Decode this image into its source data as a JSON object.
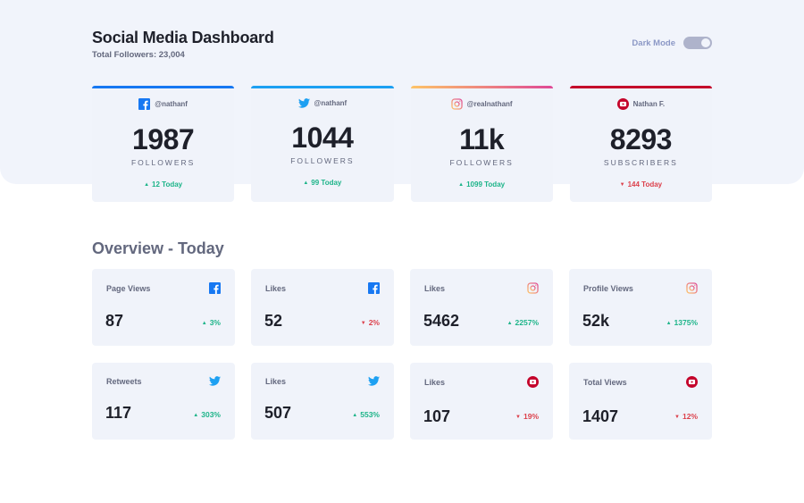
{
  "header": {
    "title": "Social Media Dashboard",
    "total_followers": "Total Followers: 23,004",
    "dark_mode_label": "Dark Mode"
  },
  "colors": {
    "facebook": "#1778f2",
    "twitter": "#1da0f2",
    "instagram_start": "#fdc468",
    "instagram_end": "#df4996",
    "youtube": "#c4032a",
    "up": "#1db489",
    "down": "#dc414c"
  },
  "follower_cards": [
    {
      "network": "facebook",
      "icon": "facebook-icon",
      "handle": "@nathanf",
      "count": "1987",
      "unit": "FOLLOWERS",
      "change": "12 Today",
      "direction": "up"
    },
    {
      "network": "twitter",
      "icon": "twitter-icon",
      "handle": "@nathanf",
      "count": "1044",
      "unit": "FOLLOWERS",
      "change": "99 Today",
      "direction": "up"
    },
    {
      "network": "instagram",
      "icon": "instagram-icon",
      "handle": "@realnathanf",
      "count": "11k",
      "unit": "FOLLOWERS",
      "change": "1099 Today",
      "direction": "up"
    },
    {
      "network": "youtube",
      "icon": "youtube-icon",
      "handle": "Nathan F.",
      "count": "8293",
      "unit": "SUBSCRIBERS",
      "change": "144 Today",
      "direction": "down"
    }
  ],
  "overview": {
    "title": "Overview - Today",
    "cards": [
      {
        "metric": "Page Views",
        "network": "facebook",
        "value": "87",
        "change": "3%",
        "direction": "up"
      },
      {
        "metric": "Likes",
        "network": "facebook",
        "value": "52",
        "change": "2%",
        "direction": "down"
      },
      {
        "metric": "Likes",
        "network": "instagram",
        "value": "5462",
        "change": "2257%",
        "direction": "up"
      },
      {
        "metric": "Profile Views",
        "network": "instagram",
        "value": "52k",
        "change": "1375%",
        "direction": "up"
      },
      {
        "metric": "Retweets",
        "network": "twitter",
        "value": "117",
        "change": "303%",
        "direction": "up"
      },
      {
        "metric": "Likes",
        "network": "twitter",
        "value": "507",
        "change": "553%",
        "direction": "up"
      },
      {
        "metric": "Likes",
        "network": "youtube",
        "value": "107",
        "change": "19%",
        "direction": "down"
      },
      {
        "metric": "Total Views",
        "network": "youtube",
        "value": "1407",
        "change": "12%",
        "direction": "down"
      }
    ]
  }
}
